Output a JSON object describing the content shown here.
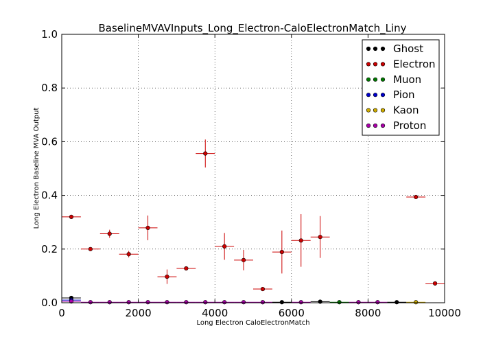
{
  "chart_data": {
    "type": "scatter",
    "title": "BaselineMVAVInputs_Long_Electron-CaloElectronMatch_Liny",
    "xlabel": "Long Electron CaloElectronMatch",
    "ylabel": "Long Electron Baseline MVA Output",
    "xlim": [
      0,
      10000
    ],
    "ylim": [
      0,
      1.0
    ],
    "xticks": [
      "0",
      "2000",
      "4000",
      "6000",
      "8000",
      "10000"
    ],
    "yticks": [
      "0.0",
      "0.2",
      "0.4",
      "0.6",
      "0.8",
      "1.0"
    ],
    "grid": true,
    "legend_position": "top-right",
    "bin_halfwidth": 250,
    "series": [
      {
        "name": "Ghost",
        "color": "#000000",
        "points": [
          {
            "x": 250,
            "y": 0.018,
            "yerr": 0.003
          },
          {
            "x": 5750,
            "y": 0.002,
            "yerr": 0.001
          },
          {
            "x": 6750,
            "y": 0.004,
            "yerr": 0.001
          },
          {
            "x": 8750,
            "y": 0.002,
            "yerr": 0.001
          }
        ]
      },
      {
        "name": "Electron",
        "color": "#cc0000",
        "points": [
          {
            "x": 250,
            "y": 0.32,
            "yerr": 0.004
          },
          {
            "x": 750,
            "y": 0.2,
            "yerr": 0.005
          },
          {
            "x": 1250,
            "y": 0.257,
            "yerr": 0.015
          },
          {
            "x": 1750,
            "y": 0.181,
            "yerr": 0.012
          },
          {
            "x": 2250,
            "y": 0.279,
            "yerr": 0.046
          },
          {
            "x": 2750,
            "y": 0.097,
            "yerr": 0.027
          },
          {
            "x": 3250,
            "y": 0.128,
            "yerr": 0.004
          },
          {
            "x": 3750,
            "y": 0.556,
            "yerr": 0.052
          },
          {
            "x": 4250,
            "y": 0.21,
            "yerr": 0.05
          },
          {
            "x": 4750,
            "y": 0.159,
            "yerr": 0.038
          },
          {
            "x": 5250,
            "y": 0.051,
            "yerr": 0.004
          },
          {
            "x": 5750,
            "y": 0.189,
            "yerr": 0.08
          },
          {
            "x": 6250,
            "y": 0.232,
            "yerr": 0.098
          },
          {
            "x": 6750,
            "y": 0.245,
            "yerr": 0.078
          },
          {
            "x": 9250,
            "y": 0.394,
            "yerr": 0.005
          },
          {
            "x": 9750,
            "y": 0.072,
            "yerr": 0.004
          }
        ]
      },
      {
        "name": "Muon",
        "color": "#007700",
        "points": [
          {
            "x": 7250,
            "y": 0.002,
            "yerr": 0.001
          }
        ]
      },
      {
        "name": "Pion",
        "color": "#0000cc",
        "points": [
          {
            "x": 250,
            "y": 0.01,
            "yerr": 0.002
          }
        ]
      },
      {
        "name": "Kaon",
        "color": "#ccaa00",
        "points": [
          {
            "x": 9250,
            "y": 0.002,
            "yerr": 0.001
          }
        ]
      },
      {
        "name": "Proton",
        "color": "#aa00aa",
        "points": [
          {
            "x": 250,
            "y": 0.005,
            "yerr": 0.001
          },
          {
            "x": 750,
            "y": 0.002,
            "yerr": 0.001
          },
          {
            "x": 1250,
            "y": 0.002,
            "yerr": 0.001
          },
          {
            "x": 1750,
            "y": 0.002,
            "yerr": 0.001
          },
          {
            "x": 2250,
            "y": 0.002,
            "yerr": 0.001
          },
          {
            "x": 2750,
            "y": 0.002,
            "yerr": 0.001
          },
          {
            "x": 3250,
            "y": 0.002,
            "yerr": 0.001
          },
          {
            "x": 3750,
            "y": 0.002,
            "yerr": 0.001
          },
          {
            "x": 4250,
            "y": 0.002,
            "yerr": 0.001
          },
          {
            "x": 4750,
            "y": 0.002,
            "yerr": 0.001
          },
          {
            "x": 5250,
            "y": 0.002,
            "yerr": 0.001
          },
          {
            "x": 6250,
            "y": 0.002,
            "yerr": 0.001
          },
          {
            "x": 7750,
            "y": 0.002,
            "yerr": 0.001
          },
          {
            "x": 8250,
            "y": 0.002,
            "yerr": 0.001
          }
        ]
      }
    ]
  }
}
